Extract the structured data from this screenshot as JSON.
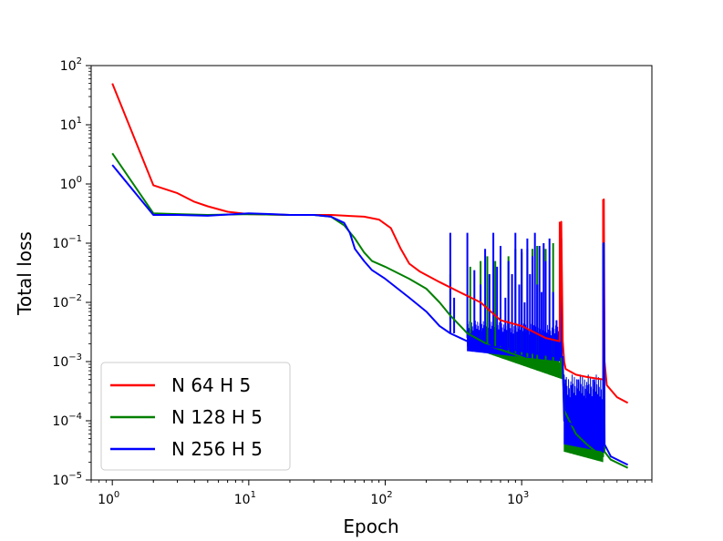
{
  "chart_data": {
    "type": "line",
    "xlabel": "Epoch",
    "ylabel": "Total loss",
    "xscale": "log",
    "yscale": "log",
    "xlim": [
      0.7,
      9000
    ],
    "ylim": [
      1e-05,
      100
    ],
    "grid": false,
    "legend_position": "bottom-left",
    "x_ticks": [
      {
        "value": 1,
        "base": "10",
        "exp": "0"
      },
      {
        "value": 10,
        "base": "10",
        "exp": "1"
      },
      {
        "value": 100,
        "base": "10",
        "exp": "2"
      },
      {
        "value": 1000,
        "base": "10",
        "exp": "3"
      }
    ],
    "y_ticks": [
      {
        "value": 1e-05,
        "base": "10",
        "exp": "−5"
      },
      {
        "value": 0.0001,
        "base": "10",
        "exp": "−4"
      },
      {
        "value": 0.001,
        "base": "10",
        "exp": "−3"
      },
      {
        "value": 0.01,
        "base": "10",
        "exp": "−2"
      },
      {
        "value": 0.1,
        "base": "10",
        "exp": "−1"
      },
      {
        "value": 1,
        "base": "10",
        "exp": "0"
      },
      {
        "value": 10,
        "base": "10",
        "exp": "1"
      },
      {
        "value": 100,
        "base": "10",
        "exp": "2"
      }
    ],
    "series": [
      {
        "name": "N 64 H 5",
        "color": "#ff0000",
        "x": [
          1,
          2,
          3,
          4,
          5,
          7,
          10,
          20,
          40,
          70,
          90,
          110,
          130,
          150,
          180,
          250,
          350,
          500,
          700,
          1000,
          1500,
          1900,
          1950,
          2000,
          2050,
          2100,
          2500,
          3000,
          3500,
          3950,
          4000,
          4050,
          4200,
          5000,
          6000
        ],
        "y": [
          50,
          0.95,
          0.7,
          0.5,
          0.42,
          0.34,
          0.31,
          0.3,
          0.3,
          0.28,
          0.25,
          0.18,
          0.08,
          0.045,
          0.033,
          0.022,
          0.015,
          0.01,
          0.005,
          0.004,
          0.0025,
          0.0022,
          0.23,
          0.0022,
          0.001,
          0.00075,
          0.0006,
          0.00055,
          0.00052,
          0.0005,
          0.55,
          0.001,
          0.0004,
          0.00025,
          0.0002
        ]
      },
      {
        "name": "N 128 H 5",
        "color": "#008000",
        "x": [
          1,
          2,
          3,
          5,
          10,
          20,
          30,
          40,
          50,
          60,
          70,
          80,
          100,
          150,
          200,
          250,
          300,
          400,
          600,
          1000,
          1500,
          2000,
          2050,
          2500,
          3000,
          3500,
          3950,
          4000,
          4050,
          4500,
          6000
        ],
        "y": [
          3.3,
          0.32,
          0.31,
          0.3,
          0.31,
          0.3,
          0.3,
          0.28,
          0.2,
          0.12,
          0.07,
          0.05,
          0.04,
          0.025,
          0.017,
          0.01,
          0.006,
          0.003,
          0.0018,
          0.0012,
          0.0008,
          0.0007,
          0.00015,
          6e-05,
          4e-05,
          3e-05,
          2.5e-05,
          0.1,
          3e-05,
          2.2e-05,
          1.6e-05
        ]
      },
      {
        "name": "N 256 H 5",
        "color": "#0000ff",
        "x": [
          1,
          2,
          3,
          5,
          8,
          10,
          15,
          20,
          30,
          40,
          50,
          55,
          60,
          70,
          80,
          100,
          150,
          200,
          250,
          300,
          400,
          600,
          1000,
          1500,
          2000,
          2050,
          2500,
          3000,
          3500,
          3950,
          4000,
          4050,
          4500,
          6000
        ],
        "y": [
          2.1,
          0.3,
          0.3,
          0.29,
          0.31,
          0.32,
          0.31,
          0.3,
          0.3,
          0.28,
          0.22,
          0.15,
          0.08,
          0.05,
          0.035,
          0.025,
          0.012,
          0.007,
          0.004,
          0.003,
          0.0022,
          0.0018,
          0.0015,
          0.0013,
          0.0012,
          0.0001,
          8e-05,
          5e-05,
          4e-05,
          3e-05,
          0.1,
          4e-05,
          2.5e-05,
          1.8e-05
        ]
      }
    ],
    "spikes": [
      {
        "series": 0,
        "x": [
          1900,
          3950
        ],
        "top": [
          0.23,
          0.55
        ],
        "base": [
          0.0022,
          0.0005
        ]
      },
      {
        "series": 1,
        "x": [
          300,
          420,
          500,
          560,
          640,
          700,
          800,
          900,
          1000,
          1100,
          1200,
          1300,
          1500,
          1700,
          1950,
          3950
        ],
        "top": [
          0.03,
          0.04,
          0.05,
          0.06,
          0.05,
          0.07,
          0.06,
          0.08,
          0.07,
          0.08,
          0.08,
          0.09,
          0.08,
          0.1,
          0.1,
          0.1
        ],
        "base": [
          0.005,
          0.003,
          0.0025,
          0.002,
          0.0018,
          0.0016,
          0.0015,
          0.0014,
          0.0013,
          0.0012,
          0.0011,
          0.001,
          0.0009,
          0.0008,
          0.0007,
          4e-05
        ]
      },
      {
        "series": 2,
        "x": [
          300,
          320,
          400,
          450,
          500,
          540,
          580,
          620,
          660,
          700,
          760,
          800,
          850,
          900,
          960,
          1000,
          1050,
          1100,
          1150,
          1200,
          1250,
          1300,
          1350,
          1400,
          1450,
          1500,
          1600,
          1700,
          1800,
          1950,
          2100,
          2300,
          2600,
          3000,
          3400,
          3950
        ],
        "top": [
          0.15,
          0.012,
          0.15,
          0.035,
          0.02,
          0.08,
          0.03,
          0.15,
          0.04,
          0.09,
          0.012,
          0.05,
          0.03,
          0.15,
          0.02,
          0.08,
          0.01,
          0.12,
          0.03,
          0.06,
          0.15,
          0.02,
          0.09,
          0.015,
          0.1,
          0.05,
          0.12,
          0.015,
          0.005,
          0.12,
          0.0005,
          0.0004,
          0.0005,
          0.0004,
          0.0005,
          0.1
        ],
        "base": [
          0.003,
          0.003,
          0.0025,
          0.0023,
          0.0022,
          0.002,
          0.002,
          0.002,
          0.0019,
          0.0018,
          0.0018,
          0.0017,
          0.0017,
          0.0016,
          0.0016,
          0.0015,
          0.0015,
          0.0015,
          0.0014,
          0.0014,
          0.0014,
          0.0013,
          0.0013,
          0.0013,
          0.0013,
          0.0013,
          0.0013,
          0.0012,
          0.0012,
          0.0012,
          0.0001,
          8e-05,
          6e-05,
          5e-05,
          4e-05,
          3e-05
        ]
      }
    ],
    "noise_bands": [
      {
        "series": 1,
        "x": [
          400,
          2000
        ],
        "low": [
          0.0018,
          0.0005
        ],
        "high": [
          0.004,
          0.0012
        ]
      },
      {
        "series": 1,
        "x": [
          2050,
          3950
        ],
        "low": [
          3e-05,
          2e-05
        ],
        "high": [
          0.0006,
          0.0006
        ]
      },
      {
        "series": 2,
        "x": [
          400,
          2000
        ],
        "low": [
          0.0015,
          0.001
        ],
        "high": [
          0.005,
          0.004
        ]
      },
      {
        "series": 2,
        "x": [
          2050,
          3950
        ],
        "low": [
          4e-05,
          3e-05
        ],
        "high": [
          0.0006,
          0.0006
        ]
      }
    ]
  }
}
